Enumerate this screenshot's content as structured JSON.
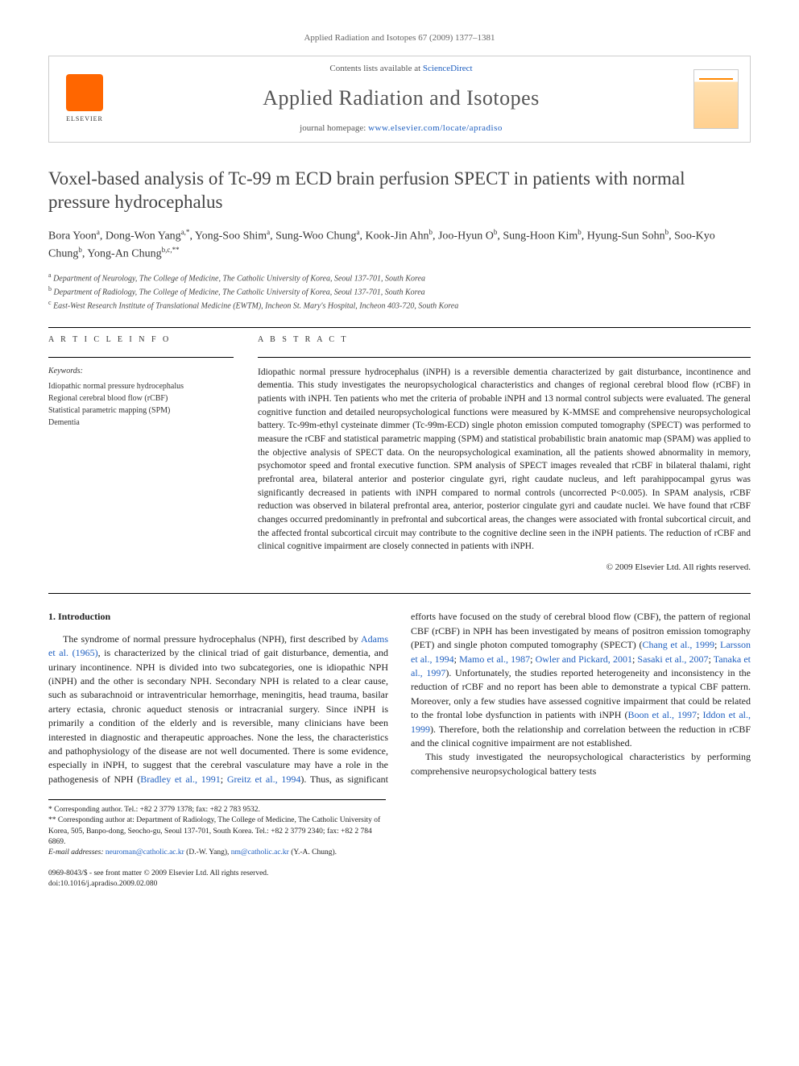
{
  "header": {
    "citation": "Applied Radiation and Isotopes 67 (2009) 1377–1381"
  },
  "banner": {
    "publisher": "ELSEVIER",
    "contents_prefix": "Contents lists available at ",
    "contents_link": "ScienceDirect",
    "journal": "Applied Radiation and Isotopes",
    "homepage_prefix": "journal homepage: ",
    "homepage_url": "www.elsevier.com/locate/apradiso"
  },
  "title": "Voxel-based analysis of Tc-99 m ECD brain perfusion SPECT in patients with normal pressure hydrocephalus",
  "authors_html": "Bora Yoon<sup>a</sup>, Dong-Won Yang<sup>a,*</sup>, Yong-Soo Shim<sup>a</sup>, Sung-Woo Chung<sup>a</sup>, Kook-Jin Ahn<sup>b</sup>, Joo-Hyun O<sup>b</sup>, Sung-Hoon Kim<sup>b</sup>, Hyung-Sun Sohn<sup>b</sup>, Soo-Kyo Chung<sup>b</sup>, Yong-An Chung<sup>b,c,**</sup>",
  "affiliations": [
    {
      "sup": "a",
      "text": "Department of Neurology, The College of Medicine, The Catholic University of Korea, Seoul 137-701, South Korea"
    },
    {
      "sup": "b",
      "text": "Department of Radiology, The College of Medicine, The Catholic University of Korea, Seoul 137-701, South Korea"
    },
    {
      "sup": "c",
      "text": "East-West Research Institute of Translational Medicine (EWTM), Incheon St. Mary's Hospital, Incheon 403-720, South Korea"
    }
  ],
  "info": {
    "label": "A R T I C L E  I N F O",
    "keywords_head": "Keywords:",
    "keywords": [
      "Idiopathic normal pressure hydrocephalus",
      "Regional cerebral blood flow (rCBF)",
      "Statistical parametric mapping (SPM)",
      "Dementia"
    ]
  },
  "abstract": {
    "label": "A B S T R A C T",
    "text": "Idiopathic normal pressure hydrocephalus (iNPH) is a reversible dementia characterized by gait disturbance, incontinence and dementia. This study investigates the neuropsychological characteristics and changes of regional cerebral blood flow (rCBF) in patients with iNPH. Ten patients who met the criteria of probable iNPH and 13 normal control subjects were evaluated. The general cognitive function and detailed neuropsychological functions were measured by K-MMSE and comprehensive neuropsychological battery. Tc-99m-ethyl cysteinate dimmer (Tc-99m-ECD) single photon emission computed tomography (SPECT) was performed to measure the rCBF and statistical parametric mapping (SPM) and statistical probabilistic brain anatomic map (SPAM) was applied to the objective analysis of SPECT data. On the neuropsychological examination, all the patients showed abnormality in memory, psychomotor speed and frontal executive function. SPM analysis of SPECT images revealed that rCBF in bilateral thalami, right prefrontal area, bilateral anterior and posterior cingulate gyri, right caudate nucleus, and left parahippocampal gyrus was significantly decreased in patients with iNPH compared to normal controls (uncorrected P<0.005). In SPAM analysis, rCBF reduction was observed in bilateral prefrontal area, anterior, posterior cingulate gyri and caudate nuclei. We have found that rCBF changes occurred predominantly in prefrontal and subcortical areas, the changes were associated with frontal subcortical circuit, and the affected frontal subcortical circuit may contribute to the cognitive decline seen in the iNPH patients. The reduction of rCBF and clinical cognitive impairment are closely connected in patients with iNPH.",
    "copyright": "© 2009 Elsevier Ltd. All rights reserved."
  },
  "body": {
    "section_num": "1.",
    "section_title": "Introduction",
    "p1_a": "The syndrome of normal pressure hydrocephalus (NPH), first described by ",
    "p1_ref1": "Adams et al. (1965)",
    "p1_b": ", is characterized by the clinical triad of gait disturbance, dementia, and urinary incontinence. NPH is divided into two subcategories, one is idiopathic NPH (iNPH) and the other is secondary NPH. Secondary NPH is related to a clear cause, such as subarachnoid or intraventricular hemorrhage, meningitis, head trauma, basilar artery ectasia, chronic aqueduct stenosis or intracranial surgery. Since iNPH is primarily a condition of the elderly and is reversible, many clinicians have been interested in diagnostic and therapeutic approaches. None the less, the characteristics and pathophysiology of the disease are not well documented. There is some evidence, especially in iNPH, to suggest that the cerebral vasculature may have a role in the pathogenesis of NPH (",
    "p1_ref2": "Bradley et al., 1991",
    "p1_sep1": "; ",
    "p1_ref3": "Greitz et al., 1994",
    "p1_c": "). Thus, as significant efforts have focused on the study of cerebral blood flow (CBF), the pattern of regional CBF (rCBF) in NPH has been investigated by means of positron emission tomography (PET) and single photon computed tomography (SPECT) (",
    "p1_ref4": "Chang et al., 1999",
    "p1_sep2": "; ",
    "p1_ref5": "Larsson et al., 1994",
    "p1_sep3": "; ",
    "p1_ref6": "Mamo et al., 1987",
    "p1_sep4": "; ",
    "p1_ref7": "Owler and Pickard, 2001",
    "p1_sep5": "; ",
    "p1_ref8": "Sasaki et al., 2007",
    "p1_sep6": "; ",
    "p1_ref9": "Tanaka et al., 1997",
    "p1_d": "). Unfortunately, the studies reported heterogeneity and inconsistency in the reduction of rCBF and no report has been able to demonstrate a typical CBF pattern. Moreover, only a few studies have assessed cognitive impairment that could be related to the frontal lobe dysfunction in patients with iNPH (",
    "p1_ref10": "Boon et al., 1997",
    "p1_sep7": "; ",
    "p1_ref11": "Iddon et al., 1999",
    "p1_e": "). Therefore, both the relationship and correlation between the reduction in rCBF and the clinical cognitive impairment are not established.",
    "p2": "This study investigated the neuropsychological characteristics by performing comprehensive neuropsychological battery tests"
  },
  "footnotes": {
    "c1": "* Corresponding author. Tel.: +82 2 3779 1378; fax: +82 2 783 9532.",
    "c2": "** Corresponding author at: Department of Radiology, The College of Medicine, The Catholic University of Korea, 505, Banpo-dong, Seocho-gu, Seoul 137-701, South Korea. Tel.: +82 2 3779 2340; fax: +82 2 784 6869.",
    "email_label": "E-mail addresses:",
    "email1": "neuroman@catholic.ac.kr",
    "email1_who": " (D.-W. Yang), ",
    "email2": "nm@catholic.ac.kr",
    "email2_who": " (Y.-A. Chung)."
  },
  "footer": {
    "line1": "0969-8043/$ - see front matter © 2009 Elsevier Ltd. All rights reserved.",
    "line2": "doi:10.1016/j.apradiso.2009.02.080"
  }
}
